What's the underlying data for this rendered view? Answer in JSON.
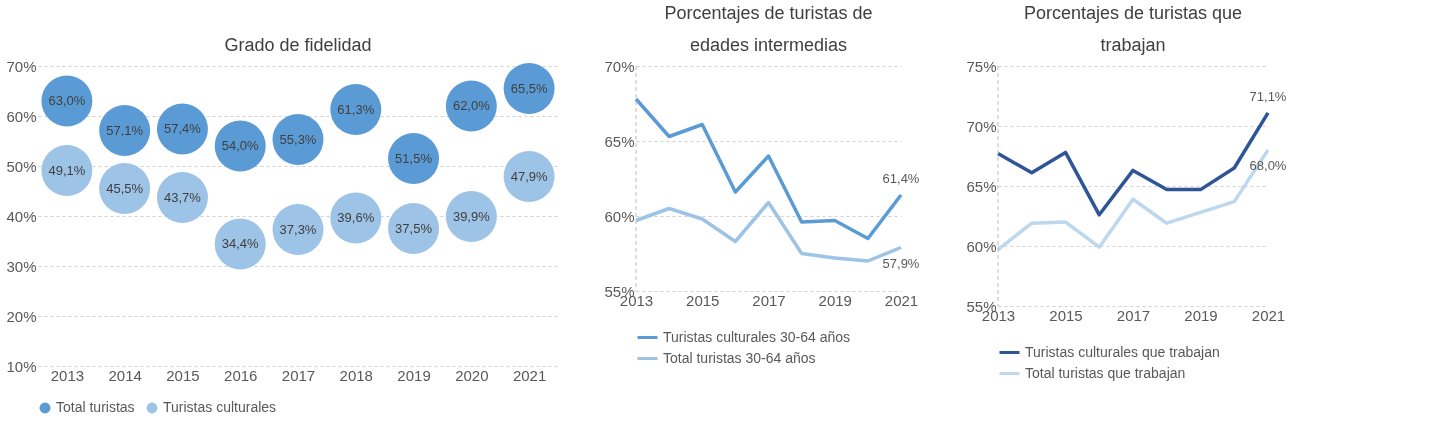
{
  "chart_data": [
    {
      "type": "scatter",
      "title": "Grado de fidelidad",
      "categories": [
        "2013",
        "2014",
        "2015",
        "2016",
        "2017",
        "2018",
        "2019",
        "2020",
        "2021"
      ],
      "series": [
        {
          "name": "Total turistas",
          "color": "#5b9bd5",
          "values": [
            63.0,
            57.1,
            57.4,
            54.0,
            55.3,
            61.3,
            51.5,
            62.0,
            65.5
          ],
          "value_labels": [
            "63,0%",
            "57,1%",
            "57,4%",
            "54,0%",
            "55,3%",
            "61,3%",
            "51,5%",
            "62,0%",
            "65,5%"
          ]
        },
        {
          "name": "Turistas culturales",
          "color": "#9dc3e6",
          "values": [
            49.1,
            45.5,
            43.7,
            34.4,
            37.3,
            39.6,
            37.5,
            39.9,
            47.9
          ],
          "value_labels": [
            "49,1%",
            "45,5%",
            "43,7%",
            "34,4%",
            "37,3%",
            "39,6%",
            "37,5%",
            "39,9%",
            "47,9%"
          ]
        }
      ],
      "ylim": [
        10,
        70
      ],
      "yticks": [
        {
          "value": 10,
          "label": "10%"
        },
        {
          "value": 20,
          "label": "20%"
        },
        {
          "value": 30,
          "label": "30%"
        },
        {
          "value": 40,
          "label": "40%"
        },
        {
          "value": 50,
          "label": "50%"
        },
        {
          "value": 60,
          "label": "60%"
        },
        {
          "value": 70,
          "label": "70%"
        }
      ],
      "grid": "y",
      "legend": "bottom"
    },
    {
      "type": "line",
      "title": "Porcentajes de turistas de edades intermedias",
      "x": [
        2013,
        2014,
        2015,
        2016,
        2017,
        2018,
        2019,
        2020,
        2021
      ],
      "series": [
        {
          "name": "Turistas culturales 30-64 años",
          "color": "#5b9bd5",
          "values": [
            67.8,
            65.3,
            66.1,
            61.6,
            64.0,
            59.6,
            59.7,
            58.5,
            61.4
          ],
          "value_labels": [
            null,
            null,
            null,
            null,
            null,
            null,
            null,
            null,
            "61,4%"
          ]
        },
        {
          "name": "Total turistas 30-64 años",
          "color": "#9dc3e6",
          "values": [
            59.7,
            60.5,
            59.8,
            58.3,
            60.9,
            57.5,
            57.2,
            57.0,
            57.9
          ],
          "value_labels": [
            null,
            null,
            null,
            null,
            null,
            null,
            null,
            null,
            "57,9%"
          ]
        }
      ],
      "xlim": [
        2013,
        2021
      ],
      "xticks": [
        2013,
        2015,
        2017,
        2019,
        2021
      ],
      "ylim": [
        55,
        70
      ],
      "yticks": [
        {
          "value": 55,
          "label": "55%"
        },
        {
          "value": 60,
          "label": "60%"
        },
        {
          "value": 65,
          "label": "65%"
        },
        {
          "value": 70,
          "label": "70%"
        }
      ],
      "grid": "y",
      "legend": "bottom",
      "line_style": "solid"
    },
    {
      "type": "line",
      "title": "Porcentajes de turistas que trabajan",
      "x": [
        2013,
        2014,
        2015,
        2016,
        2017,
        2018,
        2019,
        2020,
        2021
      ],
      "series": [
        {
          "name": "Turistas culturales que trabajan",
          "color": "#2f5597",
          "values": [
            67.7,
            66.1,
            67.8,
            62.6,
            66.3,
            64.7,
            64.7,
            66.5,
            71.1
          ],
          "value_labels": [
            null,
            null,
            null,
            null,
            null,
            null,
            null,
            null,
            "71,1%"
          ]
        },
        {
          "name": "Total turistas que trabajan",
          "color": "#bdd7ee",
          "values": [
            59.7,
            61.9,
            62.0,
            59.9,
            63.9,
            61.9,
            62.8,
            63.7,
            68.0
          ],
          "value_labels": [
            null,
            null,
            null,
            null,
            null,
            null,
            null,
            null,
            "68,0%"
          ]
        }
      ],
      "xlim": [
        2013,
        2021
      ],
      "xticks": [
        2013,
        2015,
        2017,
        2019,
        2021
      ],
      "ylim": [
        55,
        75
      ],
      "yticks": [
        {
          "value": 55,
          "label": "55%"
        },
        {
          "value": 60,
          "label": "60%"
        },
        {
          "value": 65,
          "label": "65%"
        },
        {
          "value": 70,
          "label": "70%"
        },
        {
          "value": 75,
          "label": "75%"
        }
      ],
      "grid": "y",
      "legend": "bottom",
      "line_style": "solid"
    }
  ]
}
